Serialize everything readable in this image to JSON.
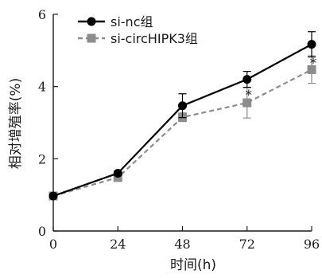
{
  "chart_data": {
    "type": "line",
    "xlabel": "时间(h)",
    "ylabel": "相对增殖率(%)",
    "x": [
      0,
      24,
      48,
      72,
      96
    ],
    "xlim": [
      0,
      96
    ],
    "ylim": [
      0,
      6
    ],
    "xticks": [
      "0",
      "24",
      "48",
      "72",
      "96"
    ],
    "yticks": [
      "0",
      "2",
      "4",
      "6"
    ],
    "legend_position": "top-left",
    "grid": false,
    "series": [
      {
        "name": "si-nc组",
        "values": [
          0.97,
          1.6,
          3.47,
          4.2,
          5.17
        ],
        "errors": [
          0.05,
          0.06,
          0.33,
          0.22,
          0.35
        ],
        "color": "#000000",
        "marker": "circle",
        "line_style": "solid"
      },
      {
        "name": "si-circHIPK3组",
        "values": [
          0.97,
          1.48,
          3.15,
          3.55,
          4.47
        ],
        "errors": [
          0.05,
          0.06,
          0.12,
          0.42,
          0.38
        ],
        "color": "#8c8c8c",
        "marker": "square",
        "line_style": "dashed"
      }
    ],
    "annotations": [
      {
        "text": "*",
        "x": 72
      },
      {
        "text": "*",
        "x": 96
      }
    ]
  }
}
